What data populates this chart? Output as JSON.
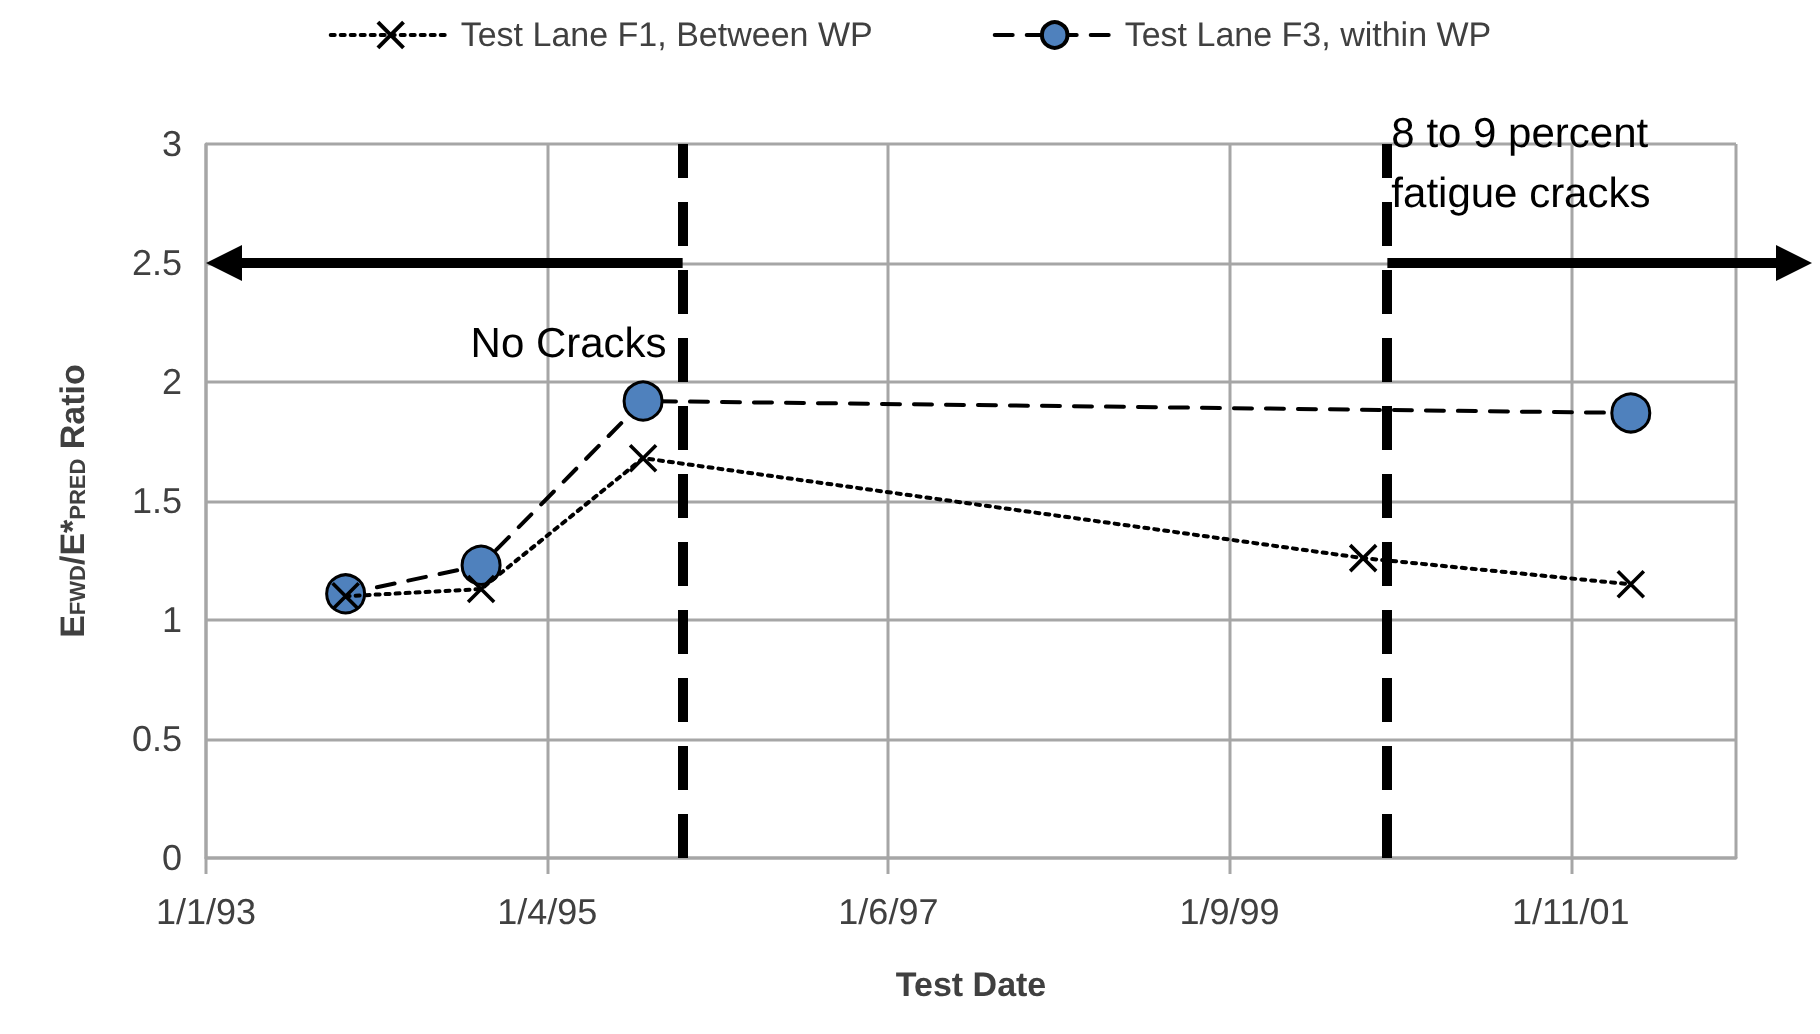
{
  "chart_data": {
    "type": "line",
    "xlabel": "Test Date",
    "ylabel": "E$_{FWD}$/E*$_{PRED}$ Ratio",
    "xlim": [
      "1993-01-01",
      "2002-01-01"
    ],
    "xticks": [
      {
        "value": "1993-01-01",
        "label": "1/1/93"
      },
      {
        "value": "1995-01-04",
        "label": "1/4/95"
      },
      {
        "value": "1997-01-06",
        "label": "1/6/97"
      },
      {
        "value": "1999-01-09",
        "label": "1/9/99"
      },
      {
        "value": "2001-01-11",
        "label": "1/11/01"
      }
    ],
    "ylim": [
      0,
      3
    ],
    "yticks": [
      0,
      0.5,
      1,
      1.5,
      2,
      2.5,
      3
    ],
    "series": [
      {
        "name": "Test Lane F1, Between WP",
        "color": "#000000",
        "marker": "cross",
        "line_style": "dotted",
        "x": [
          "1993-10-28",
          "1994-08-15",
          "1995-07-29",
          "1999-10-23",
          "2001-05-20"
        ],
        "values": [
          1.1,
          1.13,
          1.68,
          1.26,
          1.15
        ]
      },
      {
        "name": "Test Lane F3, within WP",
        "color": "#4f81bd",
        "marker": "circle",
        "line_style": "dashed",
        "x": [
          "1993-10-28",
          "1994-08-15",
          "1995-07-29",
          "2001-05-20"
        ],
        "values": [
          1.11,
          1.23,
          1.92,
          1.87
        ]
      }
    ],
    "ref_lines": [
      {
        "axis": "x",
        "value": "1995-10-22",
        "color": "#000000",
        "line_style": "dashed"
      },
      {
        "axis": "x",
        "value": "1999-12-14",
        "color": "#000000",
        "line_style": "dashed"
      }
    ],
    "annotations": [
      "No Cracks",
      "8 to 9 percent fatigue cracks"
    ],
    "grid": true,
    "legend": "top"
  }
}
